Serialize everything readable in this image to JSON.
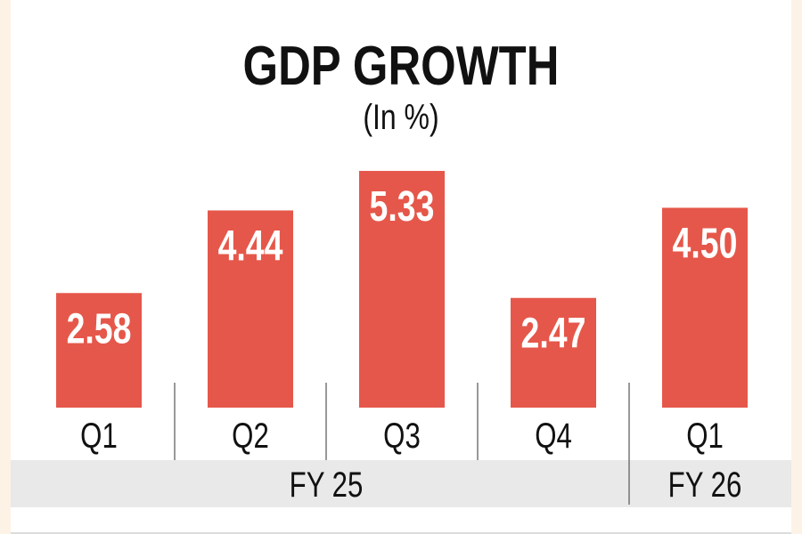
{
  "chart_data": {
    "type": "bar",
    "title": "GDP GROWTH",
    "subtitle": "(In %)",
    "categories": [
      "Q1",
      "Q2",
      "Q3",
      "Q4",
      "Q1"
    ],
    "groups": [
      {
        "label": "FY 25",
        "categories": [
          "Q1",
          "Q2",
          "Q3",
          "Q4"
        ]
      },
      {
        "label": "FY 26",
        "categories": [
          "Q1"
        ]
      }
    ],
    "values": [
      2.58,
      4.44,
      5.33,
      2.47,
      4.5
    ],
    "value_labels": [
      "2.58",
      "4.44",
      "5.33",
      "2.47",
      "4.50"
    ],
    "xlabel": "",
    "ylabel": "",
    "ylim": [
      0,
      5.5
    ],
    "grid": false,
    "colors": {
      "bar": "#e5574a",
      "band": "#e9e9e9",
      "text": "#111111",
      "label": "#ffffff"
    }
  }
}
